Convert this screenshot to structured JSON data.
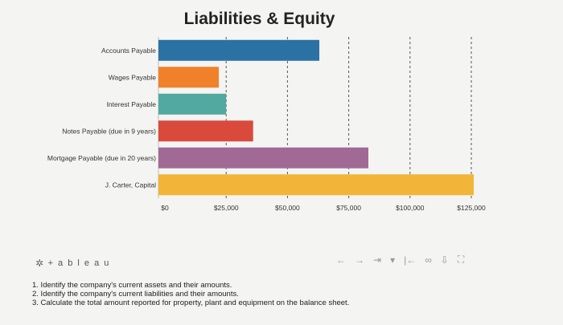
{
  "chart_data": {
    "type": "bar",
    "orientation": "horizontal",
    "title": "Liabilities & Equity",
    "categories": [
      "Accounts Payable",
      "Wages Payable",
      "Interest Payable",
      "Notes Payable (due in 9 years)",
      "Mortgage Payable (due in 20 years)",
      "J. Carter, Capital"
    ],
    "values": [
      63000,
      22000,
      25000,
      36000,
      83000,
      126000
    ],
    "colors": [
      "#2a72a4",
      "#f0812a",
      "#52a9a0",
      "#d94a3d",
      "#a06a94",
      "#f2b53a"
    ],
    "xlim": [
      0,
      126000
    ],
    "xticks": [
      0,
      25000,
      50000,
      75000,
      100000,
      125000
    ],
    "xtick_labels": [
      "$0",
      "$25,000",
      "$50,000",
      "$75,000",
      "$100,000",
      "$125,000"
    ],
    "grid": true
  },
  "brand": {
    "logo_text": "+ a b l e a u",
    "mark_icon": "tableau-star-icon"
  },
  "toolbar": {
    "icons": [
      {
        "name": "undo-icon",
        "glyph": "←"
      },
      {
        "name": "redo-icon",
        "glyph": "→"
      },
      {
        "name": "revert-icon",
        "glyph": "⇥"
      },
      {
        "name": "dropdown-icon",
        "glyph": "▾"
      },
      {
        "name": "reset-icon",
        "glyph": "|←"
      },
      {
        "name": "share-icon",
        "glyph": "∞"
      },
      {
        "name": "download-icon",
        "glyph": "⇩"
      },
      {
        "name": "fullscreen-icon",
        "glyph": "⛶"
      }
    ]
  },
  "questions": [
    "1. Identify the company's current assets and their amounts.",
    "2. Identify the company's current liabilities and their amounts.",
    "3. Calculate the total amount reported for property, plant and equipment on the balance sheet."
  ]
}
